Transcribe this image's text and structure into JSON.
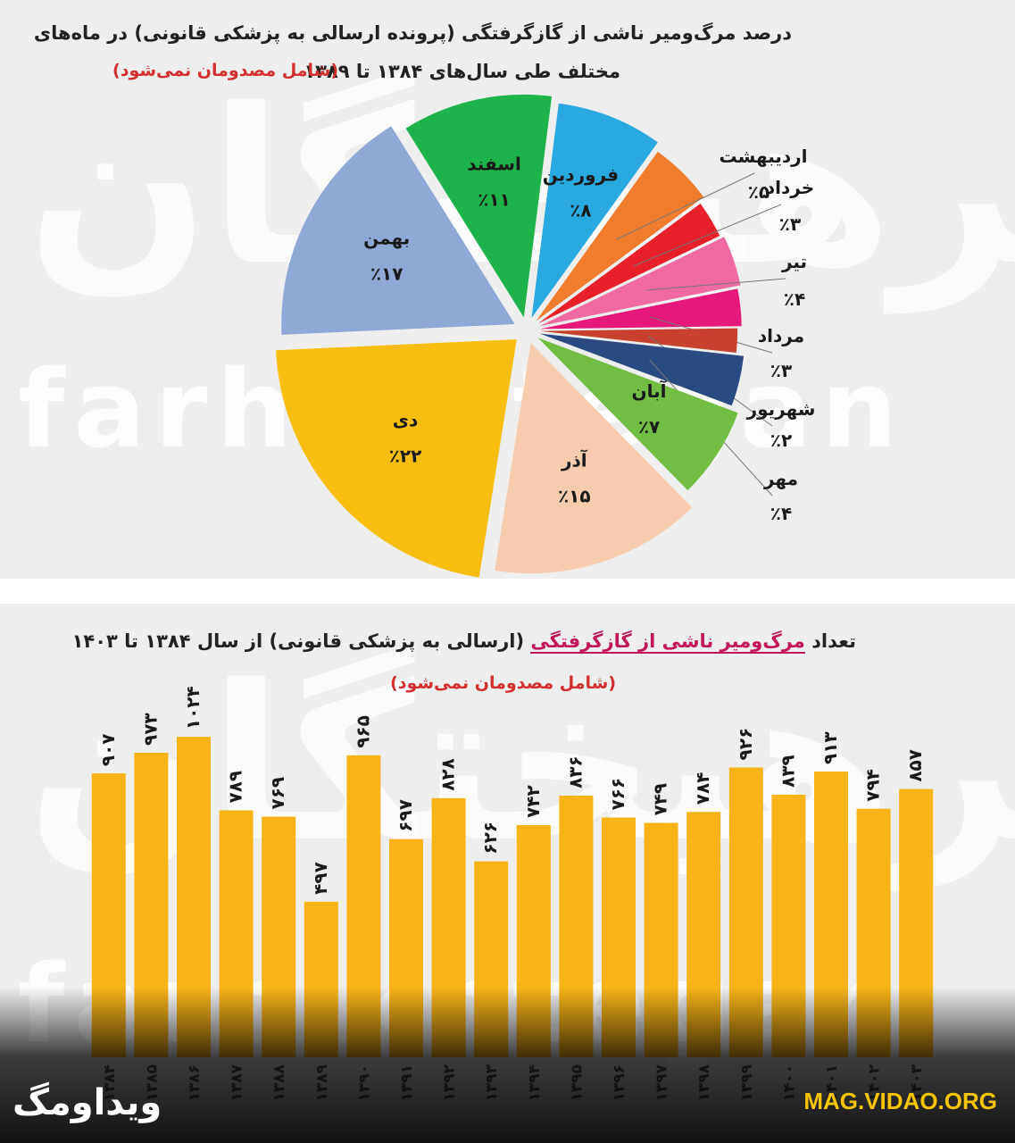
{
  "watermark": {
    "persian": "فرهیختگان",
    "latin": "farhikhtegan"
  },
  "pie_title_line1": "درصد مرگ‌ومیر ناشی از گازگرفتگی (پرونده ارسالی به پزشکی قانونی) در ماه‌های",
  "pie_title_line2": "مختلف طی سال‌های ۱۳۸۴ تا ۱۳۸۹",
  "pie_note": "(شامل مصدومان نمی‌شود)",
  "bar_title_prefix": "تعداد",
  "bar_title_highlight": "مرگ‌ومیر ناشی از گازگرفتگی",
  "bar_title_suffix": "(ارسالی به پزشکی قانونی) از سال ۱۳۸۴ تا ۱۴۰۳",
  "bar_note": "(شامل مصدومان نمی‌شود)",
  "brand_left": "ویداومگ",
  "brand_right": "MAG.VIDAO.ORG",
  "chart_data": [
    {
      "type": "pie",
      "slices": [
        {
          "label": "اسفند",
          "value_label": "٪۱۱",
          "value": 11,
          "color": "#1db34a"
        },
        {
          "label": "فروردین",
          "value_label": "٪۸",
          "value": 8,
          "color": "#2aa8e0"
        },
        {
          "label": "اردیبهشت",
          "value_label": "٪۵",
          "value": 5,
          "color": "#ef7d2d"
        },
        {
          "label": "خرداد",
          "value_label": "٪۳",
          "value": 3,
          "color": "#e8202a"
        },
        {
          "label": "تیر",
          "value_label": "٪۴",
          "value": 4,
          "color": "#ee6aa0"
        },
        {
          "label": "مرداد",
          "value_label": "٪۳",
          "value": 3,
          "color": "#e6197a"
        },
        {
          "label": "شهریور",
          "value_label": "٪۲",
          "value": 2,
          "color": "#c8402e"
        },
        {
          "label": "مهر",
          "value_label": "٪۴",
          "value": 4,
          "color": "#2b4a82"
        },
        {
          "label": "آبان",
          "value_label": "٪۷",
          "value": 7,
          "color": "#72be44"
        },
        {
          "label": "آذر",
          "value_label": "٪۱۵",
          "value": 15,
          "color": "#f6cbae"
        },
        {
          "label": "دی",
          "value_label": "٪۲۲",
          "value": 22,
          "color": "#f7be0f"
        },
        {
          "label": "بهمن",
          "value_label": "٪۱۷",
          "value": 17,
          "color": "#8fa8d6"
        }
      ]
    },
    {
      "type": "bar",
      "categories": [
        "۱۳۸۴",
        "۱۳۸۵",
        "۱۳۸۶",
        "۱۳۸۷",
        "۱۳۸۸",
        "۱۳۸۹",
        "۱۳۹۰",
        "۱۳۹۱",
        "۱۳۹۲",
        "۱۳۹۳",
        "۱۳۹۴",
        "۱۳۹۵",
        "۱۳۹۶",
        "۱۳۹۷",
        "۱۳۹۸",
        "۱۳۹۹",
        "۱۴۰۰",
        "۱۴۰۱",
        "۱۴۰۲",
        "۱۴۰۳"
      ],
      "values": [
        907,
        973,
        1024,
        789,
        769,
        497,
        965,
        697,
        828,
        626,
        742,
        836,
        766,
        749,
        784,
        926,
        839,
        913,
        794,
        857
      ],
      "value_labels": [
        "۹۰۷",
        "۹۷۳",
        "۱۰۲۴",
        "۷۸۹",
        "۷۶۹",
        "۴۹۷",
        "۹۶۵",
        "۶۹۷",
        "۸۲۸",
        "۶۲۶",
        "۷۴۲",
        "۸۳۶",
        "۷۶۶",
        "۷۴۹",
        "۷۸۴",
        "۹۲۶",
        "۸۳۹",
        "۹۱۳",
        "۷۹۴",
        "۸۵۷"
      ],
      "color": "#f8b417",
      "ylim": [
        0,
        1050
      ]
    }
  ]
}
